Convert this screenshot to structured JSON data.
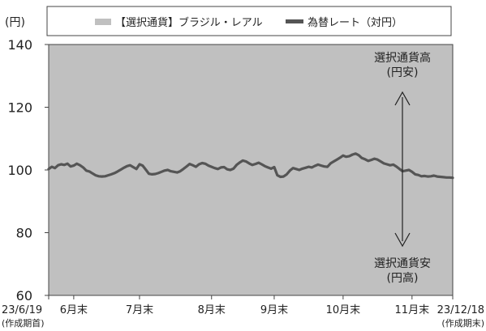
{
  "chart_data": {
    "type": "line",
    "unit_label": "(円)",
    "legend": [
      {
        "label": "【選択通貨】ブラジル・レアル",
        "color": "#c0c0c0",
        "kind": "area"
      },
      {
        "label": "為替レート（対円）",
        "color": "#555555",
        "kind": "line"
      }
    ],
    "y_axis": {
      "min": 60,
      "max": 140,
      "ticks": [
        60,
        80,
        100,
        120,
        140
      ]
    },
    "x_ticks": [
      {
        "label": "23/6/19",
        "sub": "(作成期首)",
        "index": 0
      },
      {
        "label": "6月末",
        "sub": "",
        "index": 8
      },
      {
        "label": "7月末",
        "sub": "",
        "index": 29
      },
      {
        "label": "8月末",
        "sub": "",
        "index": 52
      },
      {
        "label": "9月末",
        "sub": "",
        "index": 72
      },
      {
        "label": "10月末",
        "sub": "",
        "index": 94
      },
      {
        "label": "11月末",
        "sub": "",
        "index": 116
      },
      {
        "label": "23/12/18",
        "sub": "(作成期末)",
        "index": 129
      }
    ],
    "series": [
      {
        "name": "為替レート（対円）",
        "values": [
          100.3,
          101.0,
          100.6,
          101.5,
          101.8,
          101.6,
          102.0,
          101.1,
          101.4,
          102.0,
          101.5,
          100.8,
          99.8,
          99.5,
          98.9,
          98.3,
          98.0,
          97.9,
          98.0,
          98.3,
          98.6,
          99.0,
          99.5,
          100.1,
          100.7,
          101.2,
          101.5,
          100.9,
          100.3,
          101.8,
          101.4,
          100.1,
          98.8,
          98.6,
          98.7,
          99.0,
          99.4,
          99.8,
          100.0,
          99.6,
          99.4,
          99.2,
          99.6,
          100.3,
          101.1,
          101.9,
          101.5,
          101.0,
          101.8,
          102.2,
          102.0,
          101.4,
          101.0,
          100.6,
          100.3,
          100.8,
          100.9,
          100.2,
          100.0,
          100.4,
          101.6,
          102.4,
          103.0,
          102.7,
          102.1,
          101.6,
          101.9,
          102.3,
          101.8,
          101.2,
          100.8,
          100.4,
          100.9,
          98.3,
          97.8,
          97.9,
          98.6,
          99.8,
          100.6,
          100.3,
          100.0,
          100.4,
          100.7,
          101.0,
          100.8,
          101.3,
          101.7,
          101.4,
          101.1,
          101.0,
          102.1,
          102.7,
          103.3,
          103.9,
          104.6,
          104.2,
          104.4,
          104.9,
          105.2,
          104.7,
          103.8,
          103.4,
          102.9,
          103.2,
          103.6,
          103.3,
          102.7,
          102.1,
          101.8,
          101.5,
          101.7,
          101.1,
          100.3,
          99.6,
          99.8,
          100.0,
          99.4,
          98.6,
          98.4,
          98.0,
          98.1,
          97.9,
          98.0,
          98.2,
          97.9,
          97.8,
          97.7,
          97.6,
          97.6,
          97.5
        ]
      }
    ],
    "annotations": {
      "up_label_1": "選択通貨高",
      "up_label_2": "(円安)",
      "down_label_1": "選択通貨安",
      "down_label_2": "(円高)"
    }
  }
}
